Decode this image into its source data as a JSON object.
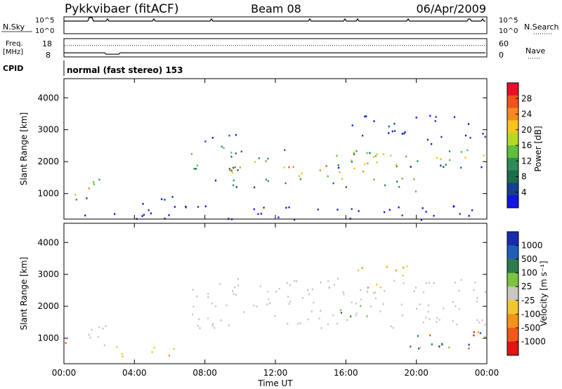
{
  "header": {
    "radar": "Pykkvibaer (fitACF)",
    "beam": "Beam 08",
    "date": "06/Apr/2009"
  },
  "chart_data": {
    "type": "heatmap",
    "xlabel": "Time UT",
    "x_ticks": [
      "00:00",
      "04:00",
      "08:00",
      "12:00",
      "16:00",
      "20:00",
      "00:00"
    ],
    "x_range_hours": [
      0,
      24
    ],
    "nsky_panel": {
      "left_label": "N.Sky",
      "right_label": "N.Search",
      "left_ticks": [
        "10^5",
        "10^0"
      ],
      "right_ticks": [
        "10^5",
        "10^0"
      ]
    },
    "freq_panel": {
      "left_label_line1": "Freq.",
      "left_label_line2": "[MHz]",
      "right_label": "Nave",
      "left_ticks": [
        "18",
        "8"
      ],
      "right_ticks": [
        "60",
        "0"
      ],
      "freq_mhz_approx": 10,
      "nave_approx": 38
    },
    "cpid": {
      "label": "CPID",
      "value": "normal (fast stereo) 153"
    },
    "power_panel": {
      "ylabel": "Slant Range [km]",
      "yticks": [
        "4000",
        "3000",
        "2000",
        "1000"
      ],
      "ylim": [
        200,
        4600
      ],
      "colorbar_title": "Power [dB]",
      "colorbar_ticks": [
        "28",
        "24",
        "20",
        "16",
        "12",
        "8",
        "4"
      ],
      "colorbar_colors": [
        "#e8102a",
        "#f0531e",
        "#f58a22",
        "#f7c51e",
        "#b6d827",
        "#5fbf3d",
        "#2e8b57",
        "#1c6d4a",
        "#15418f",
        "#1515e0"
      ],
      "regions": [
        {
          "t0": 0.1,
          "t1": 2.3,
          "r0": 750,
          "r1": 1600,
          "level": 0.7
        },
        {
          "t0": 7.2,
          "t1": 10.0,
          "r0": 1400,
          "r1": 2900,
          "level": 0.55
        },
        {
          "t0": 9.0,
          "t1": 19.5,
          "r0": 1200,
          "r1": 2400,
          "level": 0.8
        },
        {
          "t0": 15.5,
          "t1": 24.0,
          "r0": 1800,
          "r1": 2600,
          "level": 0.6
        },
        {
          "t0": 19.0,
          "t1": 20.0,
          "r0": 800,
          "r1": 1900,
          "level": 0.7
        },
        {
          "t0": 3.8,
          "t1": 7.0,
          "r0": 650,
          "r1": 950,
          "level": 0.1
        },
        {
          "t0": 16.0,
          "t1": 24.0,
          "r0": 2700,
          "r1": 3500,
          "level": 0.15
        },
        {
          "t0": 0.0,
          "t1": 24.0,
          "r0": 200,
          "r1": 650,
          "level": 0.05
        }
      ]
    },
    "velocity_panel": {
      "ylabel": "Slant Range [km]",
      "yticks": [
        "4000",
        "3000",
        "2000",
        "1000"
      ],
      "ylim": [
        200,
        4600
      ],
      "colorbar_title": "Velocity [m s⁻¹]",
      "colorbar_ticks": [
        "1000",
        "500",
        "100",
        "25",
        "-25",
        "-100",
        "-500",
        "-1000"
      ],
      "colorbar_colors": [
        "#1a2bb0",
        "#1f5fb8",
        "#2f7c4a",
        "#7cc442",
        "#c8c8c0",
        "#f2c631",
        "#f39317",
        "#f05a18",
        "#e01515"
      ],
      "regions": [
        {
          "t0": 0.1,
          "t1": 2.5,
          "r0": 800,
          "r1": 1500,
          "level": "ground"
        },
        {
          "t0": 7.2,
          "t1": 24.0,
          "r0": 1300,
          "r1": 2900,
          "level": "ground"
        },
        {
          "t0": 2.5,
          "t1": 6.8,
          "r0": 450,
          "r1": 800,
          "level": "slow_away"
        },
        {
          "t0": 15.5,
          "t1": 17.2,
          "r0": 1700,
          "r1": 2300,
          "level": "mid_toward"
        },
        {
          "t0": 16.3,
          "t1": 19.6,
          "r0": 2600,
          "r1": 3300,
          "level": "slow_away"
        },
        {
          "t0": 19.5,
          "t1": 24.0,
          "r0": 650,
          "r1": 1500,
          "level": "mixed"
        },
        {
          "t0": 0.0,
          "t1": 0.4,
          "r0": 500,
          "r1": 900,
          "level": "fast_away"
        }
      ]
    }
  }
}
